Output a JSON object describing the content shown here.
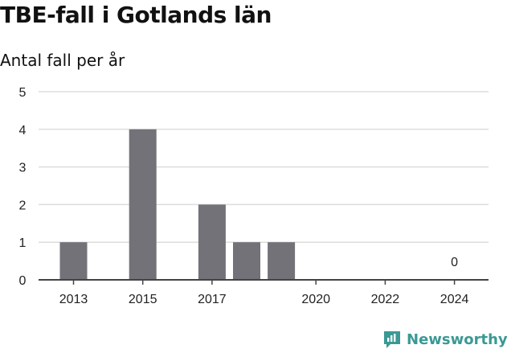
{
  "title": "TBE-fall i Gotlands län",
  "subtitle": "Antal fall per år",
  "brand": "Newsworthy",
  "colors": {
    "bar": "#737278",
    "grid": "#dddddd",
    "axis": "#444444",
    "brand": "#3a9994"
  },
  "chart_data": {
    "type": "bar",
    "title": "TBE-fall i Gotlands län",
    "subtitle": "Antal fall per år",
    "categories": [
      "2013",
      "2014",
      "2015",
      "2016",
      "2017",
      "2018",
      "2019",
      "2020",
      "2021",
      "2022",
      "2023",
      "2024"
    ],
    "values": [
      1,
      null,
      4,
      null,
      2,
      1,
      1,
      0,
      0,
      0,
      0,
      0
    ],
    "x_tick_labels": [
      "2013",
      "2015",
      "2017",
      "2020",
      "2022",
      "2024"
    ],
    "y_ticks": [
      "0",
      "1",
      "2",
      "3",
      "4",
      "5"
    ],
    "ylim": [
      0,
      5
    ],
    "grid": true,
    "annotations": [
      {
        "category": "2024",
        "text": "0"
      }
    ]
  }
}
